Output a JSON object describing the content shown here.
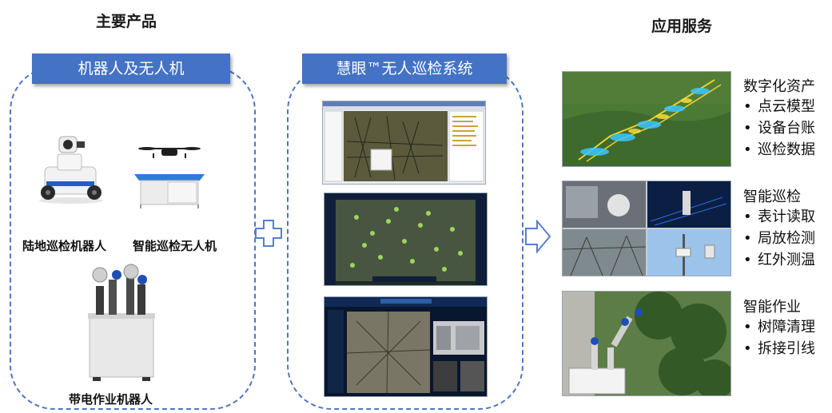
{
  "headers": {
    "products": "主要产品",
    "services": "应用服务"
  },
  "banners": {
    "robots": "机器人及无人机",
    "system": "慧眼™无人巡检系统"
  },
  "products": [
    {
      "label": "陆地巡检机器人",
      "icon": "land-robot-icon"
    },
    {
      "label": "智能巡检无人机",
      "icon": "drone-icon"
    },
    {
      "label": "带电作业机器人",
      "icon": "live-work-robot-icon"
    }
  ],
  "services": [
    {
      "title": "数字化资产",
      "items": [
        "点云模型",
        "设备台账",
        "巡检数据"
      ]
    },
    {
      "title": "智能巡检",
      "items": [
        "表计读取",
        "局放检测",
        "红外测温"
      ]
    },
    {
      "title": "智能作业",
      "items": [
        "树障清理",
        "拆接引线"
      ]
    }
  ],
  "bullet": "•",
  "colors": {
    "banner": "#4472c4",
    "panel_border": "#4f75c3",
    "arrow": "#5b7fc7"
  }
}
